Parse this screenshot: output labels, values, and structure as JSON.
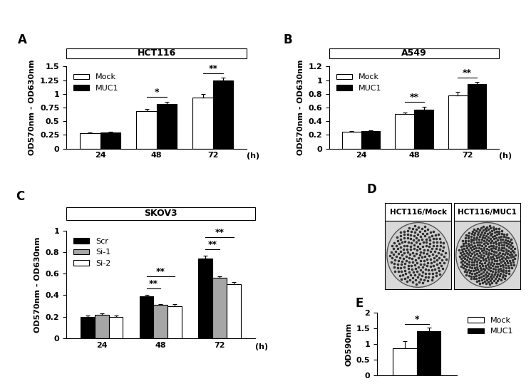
{
  "chart_data": [
    {
      "type": "bar",
      "panel": "A",
      "title": "HCT116",
      "y_label": "OD570nm - OD630nm",
      "x_label": "(h)",
      "categories": [
        "24",
        "48",
        "72"
      ],
      "series": [
        {
          "name": "Mock",
          "color": "#ffffff",
          "values": [
            0.28,
            0.68,
            0.93
          ],
          "errors": [
            0.01,
            0.04,
            0.07
          ]
        },
        {
          "name": "MUC1",
          "color": "#000000",
          "values": [
            0.3,
            0.81,
            1.24
          ],
          "errors": [
            0.01,
            0.04,
            0.05
          ]
        }
      ],
      "ylim": [
        0,
        1.5
      ],
      "yticks": [
        0,
        0.25,
        0.5,
        0.75,
        1,
        1.25,
        1.5
      ],
      "legend": "upper left",
      "significance": [
        {
          "category": "48",
          "from": "Mock",
          "to": "MUC1",
          "label": "*"
        },
        {
          "category": "72",
          "from": "Mock",
          "to": "MUC1",
          "label": "**"
        }
      ]
    },
    {
      "type": "bar",
      "panel": "B",
      "title": "A549",
      "y_label": "OD570nm - OD630nm",
      "x_label": "(h)",
      "categories": [
        "24",
        "48",
        "72"
      ],
      "series": [
        {
          "name": "Mock",
          "color": "#ffffff",
          "values": [
            0.245,
            0.51,
            0.78
          ],
          "errors": [
            0.01,
            0.02,
            0.05
          ]
        },
        {
          "name": "MUC1",
          "color": "#000000",
          "values": [
            0.255,
            0.57,
            0.94
          ],
          "errors": [
            0.015,
            0.04,
            0.03
          ]
        }
      ],
      "ylim": [
        0,
        1.2
      ],
      "yticks": [
        0,
        0.2,
        0.4,
        0.6,
        0.8,
        1,
        1.2
      ],
      "legend": "upper left",
      "significance": [
        {
          "category": "48",
          "from": "Mock",
          "to": "MUC1",
          "label": "**"
        },
        {
          "category": "72",
          "from": "Mock",
          "to": "MUC1",
          "label": "**"
        }
      ]
    },
    {
      "type": "bar",
      "panel": "C",
      "title": "SKOV3",
      "y_label": "OD570nm - OD630nm",
      "x_label": "(h)",
      "categories": [
        "24",
        "48",
        "72"
      ],
      "series": [
        {
          "name": "Scr",
          "color": "#000000",
          "values": [
            0.2,
            0.39,
            0.74
          ],
          "errors": [
            0.01,
            0.015,
            0.03
          ]
        },
        {
          "name": "Si-1",
          "color": "#a6a6a6",
          "values": [
            0.22,
            0.31,
            0.56
          ],
          "errors": [
            0.01,
            0.01,
            0.015
          ]
        },
        {
          "name": "Si-2",
          "color": "#ffffff",
          "values": [
            0.2,
            0.3,
            0.5
          ],
          "errors": [
            0.01,
            0.015,
            0.02
          ]
        }
      ],
      "ylim": [
        0,
        1
      ],
      "yticks": [
        0,
        0.2,
        0.4,
        0.6,
        0.8,
        1
      ],
      "legend": "upper left",
      "significance": [
        {
          "category": "48",
          "from": "Scr",
          "to": "Si-1",
          "label": "**"
        },
        {
          "category": "48",
          "from": "Scr",
          "to": "Si-2",
          "label": "**"
        },
        {
          "category": "72",
          "from": "Scr",
          "to": "Si-1",
          "label": "**"
        },
        {
          "category": "72",
          "from": "Scr",
          "to": "Si-2",
          "label": "**"
        }
      ]
    },
    {
      "type": "image",
      "panel": "D",
      "labels": [
        "HCT116/Mock",
        "HCT116/MUC1"
      ]
    },
    {
      "type": "bar",
      "panel": "E",
      "y_label": "OD590nm",
      "categories": [
        null
      ],
      "series": [
        {
          "name": "Mock",
          "color": "#ffffff",
          "values": [
            0.87
          ],
          "errors": [
            0.22
          ]
        },
        {
          "name": "MUC1",
          "color": "#000000",
          "values": [
            1.42
          ],
          "errors": [
            0.1
          ]
        }
      ],
      "ylim": [
        0,
        2
      ],
      "yticks": [
        0,
        0.5,
        1,
        1.5,
        2
      ],
      "legend": "upper left",
      "significance": [
        {
          "category": null,
          "from": "Mock",
          "to": "MUC1",
          "label": "*"
        }
      ]
    }
  ]
}
